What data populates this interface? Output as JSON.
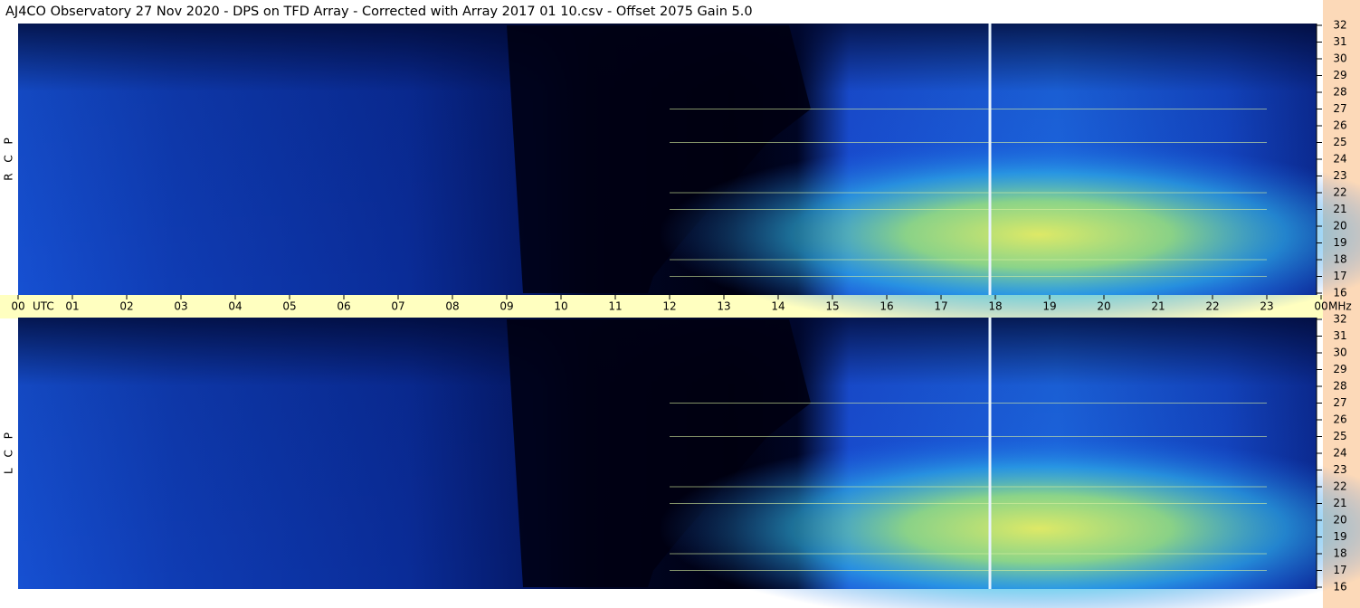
{
  "chart_data": {
    "type": "heatmap",
    "title": "AJ4CO Observatory  27 Nov 2020  -  DPS on TFD Array  -  Corrected with Array 2017 01 10.csv  -  Offset 2075  Gain 5.0",
    "panels": [
      {
        "label": "R C P"
      },
      {
        "label": "L C P"
      }
    ],
    "x_label": "UTC",
    "y_label": "MHz",
    "xlim": [
      0,
      24
    ],
    "xticks": [
      {
        "value": 0,
        "label": "00"
      },
      {
        "value": 1,
        "label": "01"
      },
      {
        "value": 2,
        "label": "02"
      },
      {
        "value": 3,
        "label": "03"
      },
      {
        "value": 4,
        "label": "04"
      },
      {
        "value": 5,
        "label": "05"
      },
      {
        "value": 6,
        "label": "06"
      },
      {
        "value": 7,
        "label": "07"
      },
      {
        "value": 8,
        "label": "08"
      },
      {
        "value": 9,
        "label": "09"
      },
      {
        "value": 10,
        "label": "10"
      },
      {
        "value": 11,
        "label": "11"
      },
      {
        "value": 12,
        "label": "12"
      },
      {
        "value": 13,
        "label": "13"
      },
      {
        "value": 14,
        "label": "14"
      },
      {
        "value": 15,
        "label": "15"
      },
      {
        "value": 16,
        "label": "16"
      },
      {
        "value": 17,
        "label": "17"
      },
      {
        "value": 18,
        "label": "18"
      },
      {
        "value": 19,
        "label": "19"
      },
      {
        "value": 20,
        "label": "20"
      },
      {
        "value": 21,
        "label": "21"
      },
      {
        "value": 22,
        "label": "22"
      },
      {
        "value": 23,
        "label": "23"
      },
      {
        "value": 24,
        "label": "00"
      }
    ],
    "ylim": [
      16,
      32
    ],
    "yticks": [
      16,
      17,
      18,
      19,
      20,
      21,
      22,
      23,
      24,
      25,
      26,
      27,
      28,
      29,
      30,
      31,
      32
    ]
  }
}
